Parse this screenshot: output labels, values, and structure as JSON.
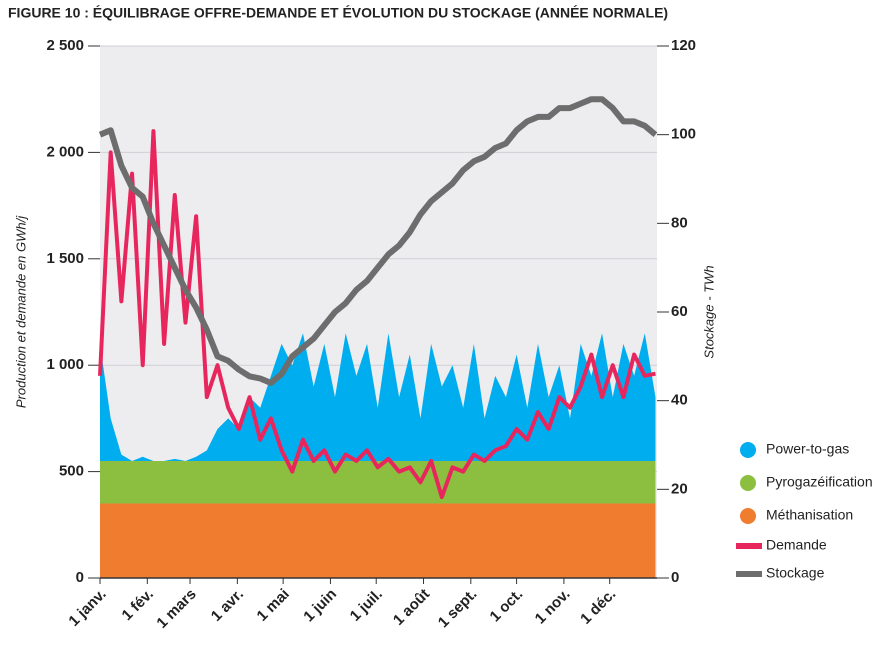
{
  "chart_data": {
    "type": "stacked-area-line",
    "title": "FIGURE 10 : ÉQUILIBRAGE OFFRE-DEMANDE ET ÉVOLUTION DU STOCKAGE (ANNÉE NORMALE)",
    "y_label": "Production et demande en GWh/j",
    "y2_label": "Stockage - TWh",
    "x": [
      0,
      7,
      14,
      21,
      28,
      35,
      42,
      49,
      56,
      63,
      70,
      77,
      84,
      91,
      98,
      105,
      112,
      119,
      126,
      133,
      140,
      147,
      154,
      161,
      168,
      175,
      182,
      189,
      196,
      203,
      210,
      217,
      224,
      231,
      238,
      245,
      252,
      259,
      266,
      273,
      280,
      287,
      294,
      301,
      308,
      315,
      322,
      329,
      336,
      343,
      350,
      357,
      364
    ],
    "xlim": [
      0,
      365
    ],
    "xticks": [
      {
        "value": 0,
        "label": "1 janv."
      },
      {
        "value": 31,
        "label": "1 fév."
      },
      {
        "value": 59,
        "label": "1 mars"
      },
      {
        "value": 90,
        "label": "1 avr."
      },
      {
        "value": 120,
        "label": "1 mai"
      },
      {
        "value": 151,
        "label": "1 juin"
      },
      {
        "value": 181,
        "label": "1 juil."
      },
      {
        "value": 212,
        "label": "1 août"
      },
      {
        "value": 243,
        "label": "1 sept."
      },
      {
        "value": 273,
        "label": "1 oct."
      },
      {
        "value": 304,
        "label": "1 nov."
      },
      {
        "value": 334,
        "label": "1 déc."
      }
    ],
    "ylim": [
      0,
      2500
    ],
    "yticks": [
      0,
      500,
      {
        "value": 1000,
        "label": "1 000"
      },
      {
        "value": 1500,
        "label": "1 500"
      },
      {
        "value": 2000,
        "label": "2 000"
      },
      {
        "value": 2500,
        "label": "2 500"
      }
    ],
    "y2lim": [
      0,
      120
    ],
    "y2ticks": [
      0,
      20,
      40,
      60,
      80,
      100,
      120
    ],
    "grid": true,
    "series": [
      {
        "name": "Méthanisation",
        "kind": "area",
        "color": "#f07c30",
        "values": [
          350,
          350,
          350,
          350,
          350,
          350,
          350,
          350,
          350,
          350,
          350,
          350,
          350,
          350,
          350,
          350,
          350,
          350,
          350,
          350,
          350,
          350,
          350,
          350,
          350,
          350,
          350,
          350,
          350,
          350,
          350,
          350,
          350,
          350,
          350,
          350,
          350,
          350,
          350,
          350,
          350,
          350,
          350,
          350,
          350,
          350,
          350,
          350,
          350,
          350,
          350,
          350,
          350
        ]
      },
      {
        "name": "Pyrogazéification",
        "kind": "area",
        "color": "#8cbf3f",
        "values": [
          200,
          200,
          200,
          200,
          200,
          200,
          200,
          200,
          200,
          200,
          200,
          200,
          200,
          200,
          200,
          200,
          200,
          200,
          200,
          200,
          200,
          200,
          200,
          200,
          200,
          200,
          200,
          200,
          200,
          200,
          200,
          200,
          200,
          200,
          200,
          200,
          200,
          200,
          200,
          200,
          200,
          200,
          200,
          200,
          200,
          200,
          200,
          200,
          200,
          200,
          200,
          200,
          200
        ]
      },
      {
        "name": "Power-to-gas",
        "kind": "area",
        "color": "#00aeef",
        "values": [
          550,
          200,
          30,
          0,
          20,
          0,
          0,
          10,
          0,
          20,
          50,
          150,
          200,
          150,
          300,
          250,
          400,
          550,
          450,
          600,
          350,
          550,
          300,
          600,
          400,
          550,
          250,
          600,
          300,
          500,
          200,
          550,
          350,
          450,
          250,
          550,
          200,
          400,
          300,
          500,
          250,
          550,
          300,
          450,
          200,
          550,
          400,
          600,
          300,
          550,
          400,
          600,
          300
        ]
      },
      {
        "name": "Demande",
        "kind": "line",
        "color": "#e8265e",
        "values": [
          950,
          2000,
          1300,
          1900,
          1000,
          2100,
          1100,
          1800,
          1200,
          1700,
          850,
          1000,
          800,
          700,
          850,
          650,
          750,
          600,
          500,
          650,
          550,
          600,
          500,
          580,
          550,
          600,
          520,
          560,
          500,
          520,
          450,
          550,
          380,
          520,
          500,
          580,
          550,
          600,
          620,
          700,
          650,
          780,
          700,
          850,
          800,
          900,
          1050,
          850,
          1000,
          850,
          1050,
          950,
          960
        ]
      },
      {
        "name": "Stockage",
        "kind": "line",
        "axis": "y2",
        "color": "#6d6d6d",
        "values": [
          100,
          101,
          93,
          88,
          86,
          80,
          75,
          70,
          65,
          61,
          56,
          50,
          49,
          47,
          45.5,
          45,
          44,
          46,
          50,
          52,
          54,
          57,
          60,
          62,
          65,
          67,
          70,
          73,
          75,
          78,
          82,
          85,
          87,
          89,
          92,
          94,
          95,
          97,
          98,
          101,
          103,
          104,
          104,
          106,
          106,
          107,
          108,
          108,
          106,
          103,
          103,
          102,
          100
        ]
      }
    ]
  }
}
